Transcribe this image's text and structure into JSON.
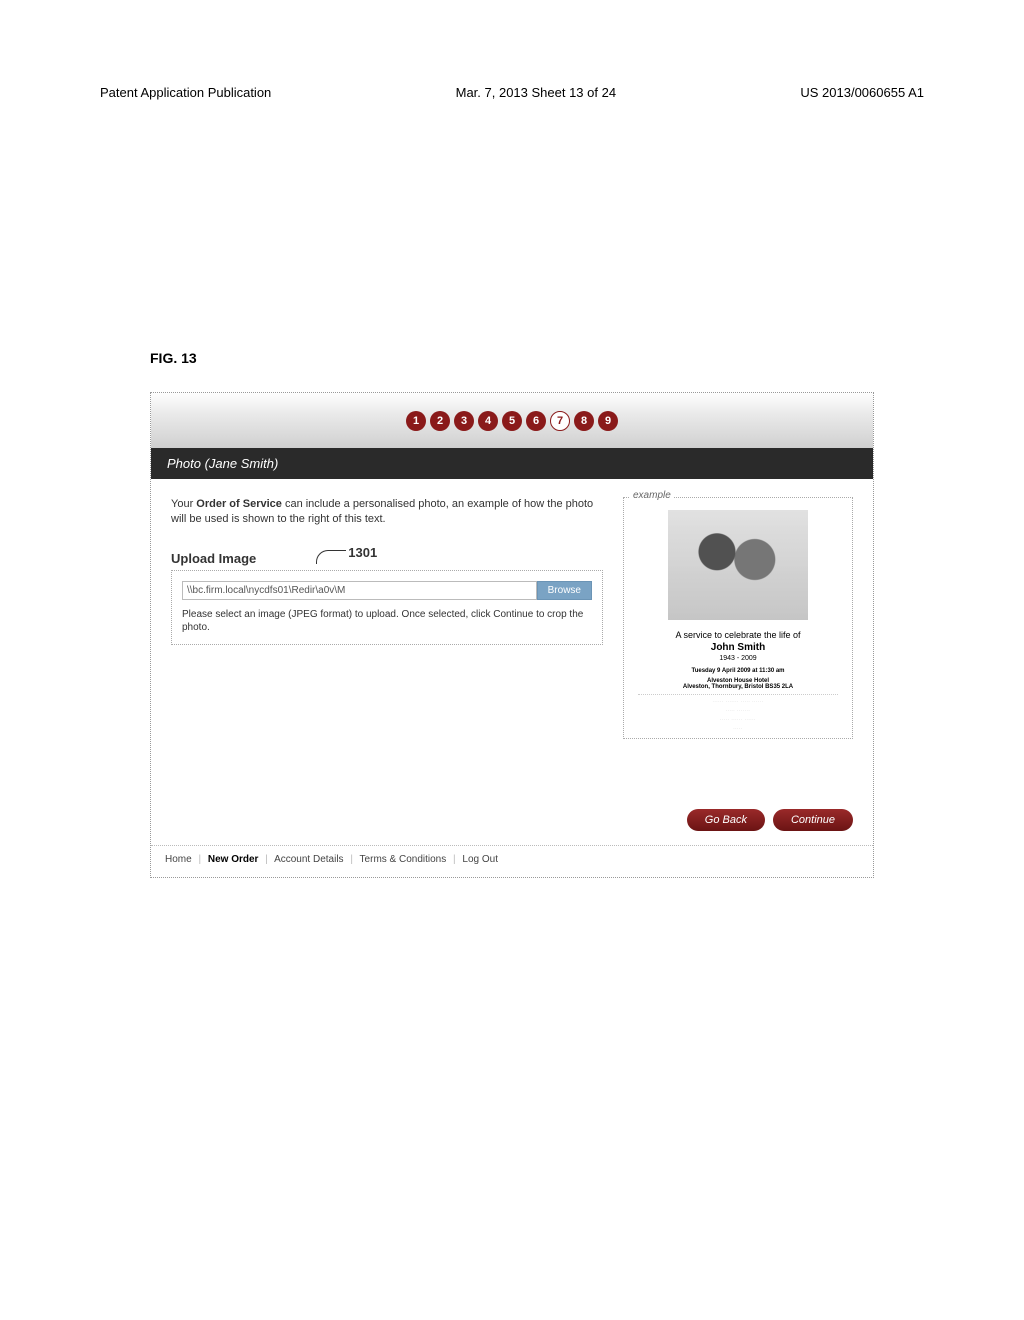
{
  "header": {
    "left": "Patent Application Publication",
    "center": "Mar. 7, 2013  Sheet 13 of 24",
    "right": "US 2013/0060655 A1"
  },
  "figure_label": "FIG. 13",
  "steps": {
    "labels": [
      "1",
      "2",
      "3",
      "4",
      "5",
      "6",
      "7",
      "8",
      "9"
    ],
    "active_index": 6
  },
  "title_bar": "Photo (Jane Smith)",
  "intro": {
    "part1": "Your ",
    "bold": "Order of Service",
    "part2": " can include a personalised photo, an example of how the photo will be used is shown to the right of this text."
  },
  "upload": {
    "heading": "Upload Image",
    "ref": "1301",
    "path": "\\\\bc.firm.local\\nycdfs01\\Redir\\a0v\\M",
    "browse": "Browse",
    "hint": "Please select an image (JPEG format) to upload. Once selected, click Continue to crop the photo."
  },
  "example": {
    "legend": "example",
    "line1": "A service to celebrate the life of",
    "name": "John Smith",
    "years": "1943 - 2009",
    "date": "Tuesday 9 April 2009 at 11:30 am",
    "venue1": "Alveston House Hotel",
    "venue2": "Alveston, Thornbury, Bristol  BS35 2LA"
  },
  "buttons": {
    "back": "Go Back",
    "continue": "Continue"
  },
  "footer": {
    "home": "Home",
    "new_order": "New Order",
    "account": "Account Details",
    "terms": "Terms & Conditions",
    "logout": "Log Out"
  }
}
